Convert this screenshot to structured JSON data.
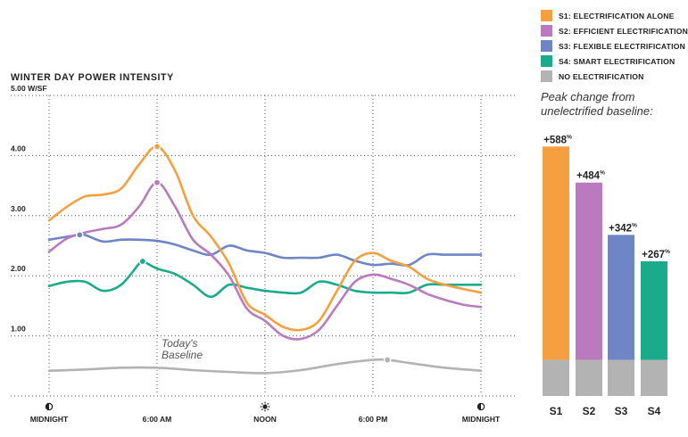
{
  "chart_title": "WINTER DAY POWER INTENSITY",
  "legend": [
    {
      "label": "S1: ELECTRIFICATION ALONE",
      "color": "#f4a040"
    },
    {
      "label": "S2: EFFICIENT ELECTRIFICATION",
      "color": "#b97bbd"
    },
    {
      "label": "S3: FLEXIBLE ELECTRIFICATION",
      "color": "#6f86c6"
    },
    {
      "label": "S4: SMART ELECTRIFICATION",
      "color": "#1aab8a"
    },
    {
      "label": "NO ELECTRIFICATION",
      "color": "#b3b3b3"
    }
  ],
  "peak_caption_line1": "Peak change from",
  "peak_caption_line2": "unelectrified baseline:",
  "baseline_label_line1": "Today's",
  "baseline_label_line2": "Baseline",
  "chart_data": [
    {
      "type": "line",
      "title": "WINTER DAY POWER INTENSITY",
      "ylabel": "W/SF",
      "ylim": [
        0,
        5
      ],
      "xlim": [
        0,
        24
      ],
      "grid": true,
      "yticks": [
        {
          "value": 1,
          "label": "1.00"
        },
        {
          "value": 2,
          "label": "2.00"
        },
        {
          "value": 3,
          "label": "3.00"
        },
        {
          "value": 4,
          "label": "4.00"
        },
        {
          "value": 5,
          "label": "5.00 W/SF"
        }
      ],
      "xticks": [
        {
          "hour": 0,
          "label": "MIDNIGHT",
          "icon": "moon-icon"
        },
        {
          "hour": 6,
          "label": "6:00 AM",
          "icon": ""
        },
        {
          "hour": 12,
          "label": "NOON",
          "icon": "sun-icon"
        },
        {
          "hour": 18,
          "label": "6:00 PM",
          "icon": ""
        },
        {
          "hour": 24,
          "label": "MIDNIGHT",
          "icon": "moon-icon"
        }
      ],
      "series": [
        {
          "name": "S1: ELECTRIFICATION ALONE",
          "color": "#f4a040",
          "peak": {
            "x": 6,
            "y": 4.15
          },
          "points": [
            [
              0,
              2.92
            ],
            [
              1,
              3.15
            ],
            [
              2,
              3.32
            ],
            [
              3,
              3.35
            ],
            [
              4,
              3.45
            ],
            [
              5,
              3.85
            ],
            [
              6,
              4.15
            ],
            [
              7,
              3.75
            ],
            [
              8,
              3.0
            ],
            [
              9,
              2.65
            ],
            [
              10,
              2.2
            ],
            [
              11,
              1.55
            ],
            [
              12,
              1.35
            ],
            [
              13,
              1.15
            ],
            [
              14,
              1.1
            ],
            [
              15,
              1.25
            ],
            [
              16,
              1.75
            ],
            [
              17,
              2.25
            ],
            [
              18,
              2.38
            ],
            [
              19,
              2.25
            ],
            [
              20,
              2.15
            ],
            [
              21,
              1.95
            ],
            [
              22,
              1.85
            ],
            [
              23,
              1.78
            ],
            [
              24,
              1.72
            ]
          ]
        },
        {
          "name": "S2: EFFICIENT ELECTRIFICATION",
          "color": "#b97bbd",
          "peak": {
            "x": 6,
            "y": 3.55
          },
          "points": [
            [
              0,
              2.4
            ],
            [
              1,
              2.62
            ],
            [
              2,
              2.72
            ],
            [
              3,
              2.78
            ],
            [
              4,
              2.85
            ],
            [
              5,
              3.15
            ],
            [
              6,
              3.55
            ],
            [
              7,
              3.15
            ],
            [
              8,
              2.6
            ],
            [
              9,
              2.35
            ],
            [
              10,
              2.0
            ],
            [
              11,
              1.45
            ],
            [
              12,
              1.25
            ],
            [
              13,
              1.0
            ],
            [
              14,
              0.95
            ],
            [
              15,
              1.1
            ],
            [
              16,
              1.5
            ],
            [
              17,
              1.9
            ],
            [
              18,
              2.02
            ],
            [
              19,
              1.95
            ],
            [
              20,
              1.85
            ],
            [
              21,
              1.7
            ],
            [
              22,
              1.6
            ],
            [
              23,
              1.52
            ],
            [
              24,
              1.48
            ]
          ]
        },
        {
          "name": "S3: FLEXIBLE ELECTRIFICATION",
          "color": "#6f86c6",
          "peak": {
            "x": 1.7,
            "y": 2.68
          },
          "points": [
            [
              0,
              2.6
            ],
            [
              1,
              2.65
            ],
            [
              1.7,
              2.68
            ],
            [
              2,
              2.68
            ],
            [
              3,
              2.57
            ],
            [
              4,
              2.6
            ],
            [
              5,
              2.6
            ],
            [
              6,
              2.58
            ],
            [
              7,
              2.52
            ],
            [
              8,
              2.42
            ],
            [
              9,
              2.35
            ],
            [
              10,
              2.5
            ],
            [
              11,
              2.42
            ],
            [
              12,
              2.38
            ],
            [
              13,
              2.3
            ],
            [
              14,
              2.3
            ],
            [
              15,
              2.3
            ],
            [
              16,
              2.35
            ],
            [
              17,
              2.25
            ],
            [
              18,
              2.18
            ],
            [
              19,
              2.2
            ],
            [
              20,
              2.18
            ],
            [
              21,
              2.35
            ],
            [
              22,
              2.35
            ],
            [
              23,
              2.35
            ],
            [
              24,
              2.35
            ]
          ]
        },
        {
          "name": "S4: SMART ELECTRIFICATION",
          "color": "#1aab8a",
          "peak": {
            "x": 5.2,
            "y": 2.24
          },
          "points": [
            [
              0,
              1.83
            ],
            [
              1,
              1.9
            ],
            [
              2,
              1.9
            ],
            [
              3,
              1.75
            ],
            [
              4,
              1.85
            ],
            [
              5,
              2.2
            ],
            [
              5.2,
              2.24
            ],
            [
              6,
              2.12
            ],
            [
              7,
              2.03
            ],
            [
              8,
              1.85
            ],
            [
              9,
              1.65
            ],
            [
              10,
              1.85
            ],
            [
              11,
              1.8
            ],
            [
              12,
              1.75
            ],
            [
              13,
              1.72
            ],
            [
              14,
              1.72
            ],
            [
              15,
              1.9
            ],
            [
              16,
              1.85
            ],
            [
              17,
              1.75
            ],
            [
              18,
              1.72
            ],
            [
              19,
              1.72
            ],
            [
              20,
              1.72
            ],
            [
              21,
              1.85
            ],
            [
              22,
              1.85
            ],
            [
              23,
              1.85
            ],
            [
              24,
              1.85
            ]
          ]
        },
        {
          "name": "NO ELECTRIFICATION",
          "color": "#b3b3b3",
          "peak": {
            "x": 18.8,
            "y": 0.6
          },
          "points": [
            [
              0,
              0.42
            ],
            [
              2,
              0.44
            ],
            [
              4,
              0.47
            ],
            [
              6,
              0.47
            ],
            [
              8,
              0.43
            ],
            [
              10,
              0.4
            ],
            [
              12,
              0.38
            ],
            [
              14,
              0.43
            ],
            [
              16,
              0.53
            ],
            [
              18,
              0.6
            ],
            [
              18.8,
              0.6
            ],
            [
              20,
              0.55
            ],
            [
              22,
              0.47
            ],
            [
              24,
              0.42
            ]
          ]
        }
      ]
    },
    {
      "type": "bar",
      "title": "Peak change from unelectrified baseline:",
      "ylim": [
        0,
        5
      ],
      "categories": [
        "S1",
        "S2",
        "S3",
        "S4"
      ],
      "baseline_value": 0.6,
      "baseline_color": "#b3b3b3",
      "values": [
        4.15,
        3.55,
        2.68,
        2.24
      ],
      "colors": [
        "#f4a040",
        "#b97bbd",
        "#6f86c6",
        "#1aab8a"
      ],
      "data_labels": [
        "+588",
        "+484",
        "+342",
        "+267"
      ],
      "label_suffix": "%"
    }
  ]
}
